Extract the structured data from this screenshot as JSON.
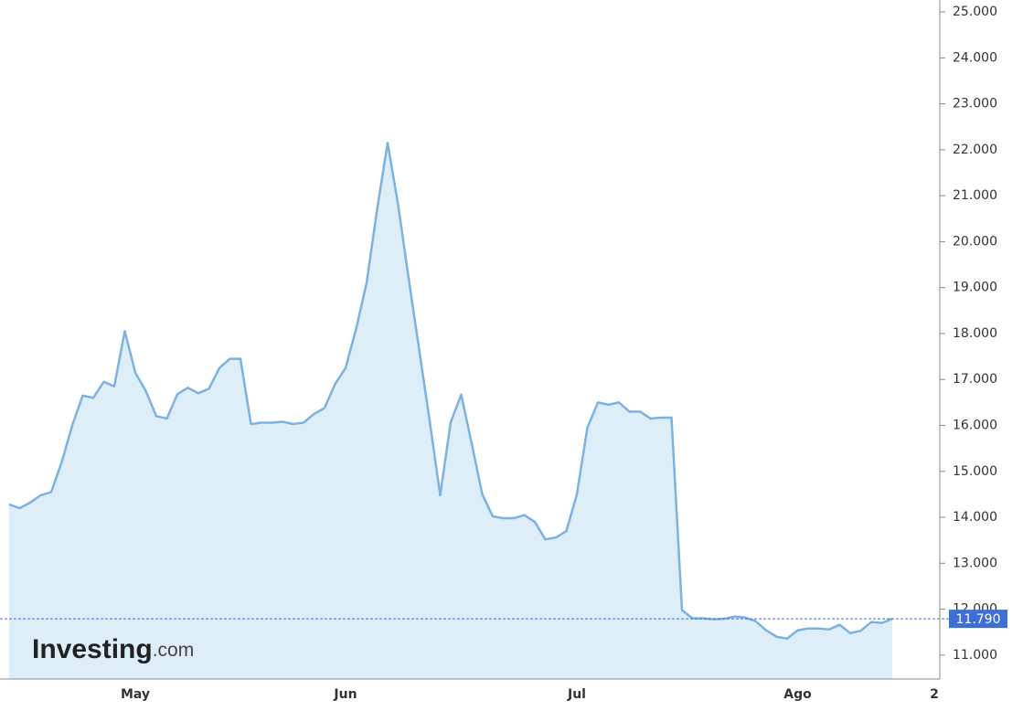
{
  "chart_data": {
    "type": "area",
    "categories": [
      null,
      null,
      null,
      null,
      null,
      null,
      null,
      null,
      null,
      null,
      null,
      null,
      "May",
      null,
      null,
      null,
      null,
      null,
      null,
      null,
      null,
      null,
      null,
      null,
      null,
      null,
      null,
      null,
      null,
      null,
      null,
      null,
      "Jun",
      null,
      null,
      null,
      null,
      null,
      null,
      null,
      null,
      null,
      null,
      null,
      null,
      null,
      null,
      null,
      null,
      null,
      null,
      null,
      null,
      null,
      "Jul",
      null,
      null,
      null,
      null,
      null,
      null,
      null,
      null,
      null,
      null,
      null,
      null,
      null,
      null,
      null,
      null,
      null,
      null,
      null,
      null,
      "Ago",
      null,
      null,
      null,
      null,
      null,
      null,
      null,
      null,
      null,
      null,
      null,
      null,
      "2"
    ],
    "values": [
      14280,
      14200,
      14320,
      14480,
      14550,
      15200,
      16000,
      16650,
      16600,
      16950,
      16850,
      18050,
      17150,
      16750,
      16200,
      16150,
      16680,
      16820,
      16700,
      16800,
      17250,
      17450,
      17450,
      16030,
      16060,
      16060,
      16080,
      16030,
      16060,
      16250,
      16380,
      16900,
      17250,
      18100,
      19100,
      20700,
      22150,
      20800,
      19200,
      17650,
      16100,
      14480,
      16070,
      16670,
      15600,
      14500,
      14020,
      13980,
      13980,
      14050,
      13900,
      13520,
      13560,
      13700,
      14500,
      15950,
      16500,
      16450,
      16500,
      16300,
      16300,
      16150,
      16170,
      16170,
      11980,
      11800,
      11800,
      11780,
      11790,
      11840,
      11820,
      11740,
      11540,
      11400,
      11360,
      11540,
      11580,
      11580,
      11560,
      11660,
      11480,
      11530,
      11720,
      11700,
      11790,
      null,
      null,
      null,
      null
    ],
    "color": "#7db2e0",
    "fill_color": "#ddeef9",
    "ylim": [
      10480,
      25260
    ],
    "yticks": [
      {
        "value": 11000,
        "label": "11.000"
      },
      {
        "value": 12000,
        "label": "12.000"
      },
      {
        "value": 13000,
        "label": "13.000"
      },
      {
        "value": 14000,
        "label": "14.000"
      },
      {
        "value": 15000,
        "label": "15.000"
      },
      {
        "value": 16000,
        "label": "16.000"
      },
      {
        "value": 17000,
        "label": "17.000"
      },
      {
        "value": 18000,
        "label": "18.000"
      },
      {
        "value": 19000,
        "label": "19.000"
      },
      {
        "value": 20000,
        "label": "20.000"
      },
      {
        "value": 21000,
        "label": "21.000"
      },
      {
        "value": 22000,
        "label": "22.000"
      },
      {
        "value": 23000,
        "label": "23.000"
      },
      {
        "value": 24000,
        "label": "24.000"
      },
      {
        "value": 25000,
        "label": "25.000"
      }
    ],
    "last_value": {
      "value": 11790,
      "label": "11.790"
    },
    "watermark": {
      "brand": "Investing",
      "suffix": ".com"
    }
  }
}
